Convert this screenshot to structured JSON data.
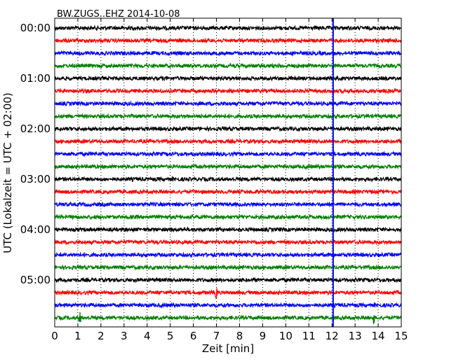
{
  "chart_data": {
    "type": "line",
    "title": "BW.ZUGS..EHZ 2014-10-08",
    "xlabel": "Zeit  [min]",
    "ylabel": "UTC (Lokalzeit = UTC + 02:00)",
    "xlim": [
      0,
      15
    ],
    "x_ticks": [
      "0",
      "1",
      "2",
      "3",
      "4",
      "5",
      "6",
      "7",
      "8",
      "9",
      "10",
      "11",
      "12",
      "13",
      "14",
      "15"
    ],
    "y_ticks": [
      "00:00",
      "01:00",
      "02:00",
      "03:00",
      "04:00",
      "05:00"
    ],
    "grid": "vertical dotted",
    "trace_colors": [
      "#000000",
      "#ff0000",
      "#0000ff",
      "#007f00"
    ],
    "trace_start_minutes_utc": [
      0,
      15,
      30,
      45,
      60,
      75,
      90,
      105,
      120,
      135,
      150,
      165,
      180,
      195,
      210,
      225,
      240,
      255,
      270,
      285,
      300,
      315,
      330,
      345
    ],
    "marker_line": {
      "x": 12.05,
      "color": "#0000ff"
    },
    "events": [
      {
        "trace": 21,
        "x": 7.0
      },
      {
        "trace": 23,
        "x": 1.1
      },
      {
        "trace": 23,
        "x": 13.8
      }
    ]
  }
}
